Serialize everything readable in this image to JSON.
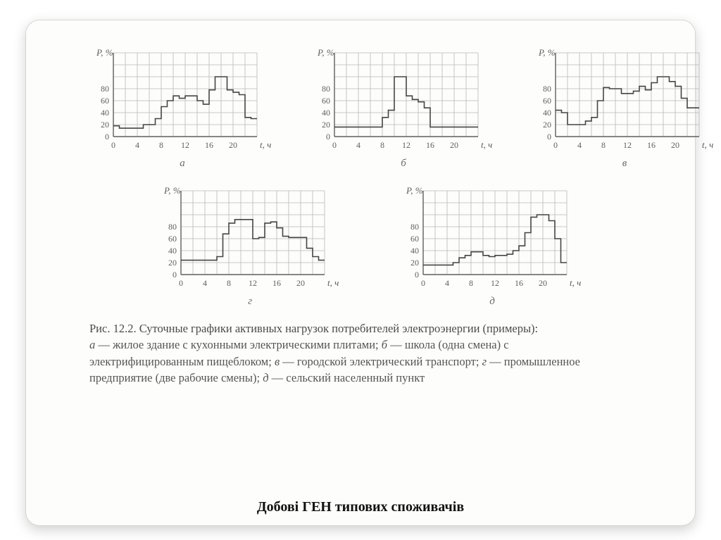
{
  "background_color": "#ffffff",
  "card_bg": "#fdfdfb",
  "card_border": "#d8d6cf",
  "charts_common": {
    "ylabel": "P, %",
    "xlabel": "t, ч",
    "ylim": [
      0,
      100
    ],
    "yticks": [
      0,
      20,
      40,
      60,
      80
    ],
    "xlim": [
      0,
      24
    ],
    "xticks": [
      0,
      4,
      8,
      12,
      16,
      20
    ],
    "grid_color": "#b7b7b3",
    "axis_color": "#5e5e5a",
    "line_color": "#454541",
    "line_width": 1.6,
    "label_fontsize": 13,
    "tick_fontsize": 12,
    "plot_bg": "#fdfdfb",
    "width_cells": 12,
    "height_cells": 7
  },
  "charts": {
    "a": {
      "sub": "а",
      "values": [
        18,
        14,
        14,
        14,
        14,
        20,
        20,
        30,
        50,
        60,
        68,
        64,
        68,
        68,
        60,
        54,
        78,
        100,
        100,
        78,
        74,
        70,
        32,
        30
      ]
    },
    "b": {
      "sub": "б",
      "values": [
        16,
        16,
        16,
        16,
        16,
        16,
        16,
        16,
        32,
        44,
        100,
        100,
        68,
        62,
        58,
        48,
        16,
        16,
        16,
        16,
        16,
        16,
        16,
        16
      ]
    },
    "v": {
      "sub": "в",
      "values": [
        44,
        40,
        20,
        20,
        20,
        26,
        32,
        60,
        82,
        80,
        80,
        72,
        72,
        76,
        84,
        78,
        90,
        100,
        100,
        92,
        84,
        64,
        48,
        48
      ]
    },
    "g": {
      "sub": "г",
      "values": [
        24,
        24,
        24,
        24,
        24,
        24,
        30,
        68,
        86,
        92,
        92,
        92,
        60,
        62,
        86,
        88,
        78,
        64,
        62,
        62,
        62,
        44,
        30,
        24
      ]
    },
    "d": {
      "sub": "д",
      "values": [
        16,
        16,
        16,
        16,
        16,
        20,
        28,
        32,
        38,
        38,
        32,
        30,
        32,
        32,
        34,
        40,
        48,
        70,
        96,
        100,
        100,
        90,
        60,
        20
      ]
    }
  },
  "caption": {
    "fig_label": "Рис. 12.2. Суточные графики активных нагрузок потребителей электро­энергии (примеры):",
    "legend": "а — жилое здание с кухонными электрическими плитами; б — школа (одна смена) с электрифицированным пищеблоком; в — городской электрический транспорт; г — промышленное предприятие (две рабо­чие смены); д — сельский населенный пункт",
    "legend_a_key": "а",
    "legend_a_txt": " — жилое здание с кухонными электрическими плитами; ",
    "legend_b_key": "б",
    "legend_b_txt": " — школа (одна смена) с электрифицированным пищеблоком; ",
    "legend_v_key": "в",
    "legend_v_txt": " — городской электрический транспорт; ",
    "legend_g_key": "г",
    "legend_g_txt": " — промышленное предприятие (две рабо­чие смены); ",
    "legend_d_key": "д",
    "legend_d_txt": " — сельский населенный пункт"
  },
  "bottom_title": "Добові ГЕН типових споживачів"
}
